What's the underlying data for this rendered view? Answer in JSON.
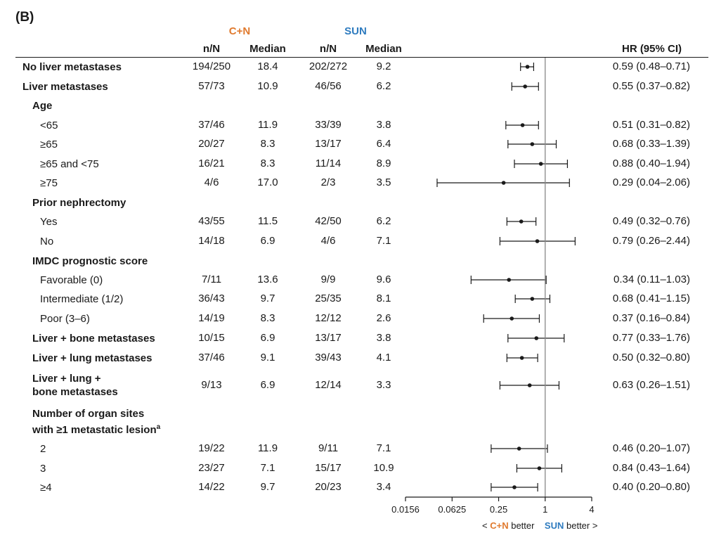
{
  "panel_label": "(B)",
  "groups": {
    "cn": "C+N",
    "sun": "SUN"
  },
  "columns": {
    "n_cn": "n/N",
    "median_cn": "Median",
    "n_sun": "n/N",
    "median_sun": "Median",
    "hr": "HR (95% CI)"
  },
  "colors": {
    "cn": "#e07a2e",
    "sun": "#2e7bbf",
    "reference_line": "#888888",
    "marker": "#1a1a1a"
  },
  "legend": {
    "cn_group": "C+N",
    "cn_text": "better",
    "sun_group": "SUN",
    "sun_text": "better",
    "left_arrow": "<",
    "right_arrow": ">"
  },
  "chart_data": {
    "type": "forest",
    "x_scale": "log2",
    "xlim": [
      0.0156,
      4
    ],
    "x_ticks": [
      0.0156,
      0.0625,
      0.25,
      1,
      4
    ],
    "x_tick_labels": [
      "0.0156",
      "0.0625",
      "0.25",
      "1",
      "4"
    ],
    "reference_x": 1,
    "rows": [
      {
        "label": "No liver metastases",
        "bold": true,
        "indent": 0,
        "n_cn": "194/250",
        "median_cn": "18.4",
        "n_sun": "202/272",
        "median_sun": "9.2",
        "hr": 0.59,
        "lo": 0.48,
        "hi": 0.71,
        "hr_text": "0.59 (0.48–0.71)"
      },
      {
        "label": "Liver metastases",
        "bold": true,
        "indent": 0,
        "n_cn": "57/73",
        "median_cn": "10.9",
        "n_sun": "46/56",
        "median_sun": "6.2",
        "hr": 0.55,
        "lo": 0.37,
        "hi": 0.82,
        "hr_text": "0.55 (0.37–0.82)"
      },
      {
        "label": "Age",
        "bold": true,
        "indent": 1,
        "header": true
      },
      {
        "label": "<65",
        "bold": false,
        "indent": 2,
        "n_cn": "37/46",
        "median_cn": "11.9",
        "n_sun": "33/39",
        "median_sun": "3.8",
        "hr": 0.51,
        "lo": 0.31,
        "hi": 0.82,
        "hr_text": "0.51 (0.31–0.82)"
      },
      {
        "label": "≥65",
        "bold": false,
        "indent": 2,
        "n_cn": "20/27",
        "median_cn": "8.3",
        "n_sun": "13/17",
        "median_sun": "6.4",
        "hr": 0.68,
        "lo": 0.33,
        "hi": 1.39,
        "hr_text": "0.68 (0.33–1.39)"
      },
      {
        "label": "≥65 and <75",
        "bold": false,
        "indent": 2,
        "n_cn": "16/21",
        "median_cn": "8.3",
        "n_sun": "11/14",
        "median_sun": "8.9",
        "hr": 0.88,
        "lo": 0.4,
        "hi": 1.94,
        "hr_text": "0.88 (0.40–1.94)"
      },
      {
        "label": "≥75",
        "bold": false,
        "indent": 2,
        "n_cn": "4/6",
        "median_cn": "17.0",
        "n_sun": "2/3",
        "median_sun": "3.5",
        "hr": 0.29,
        "lo": 0.04,
        "hi": 2.06,
        "hr_text": "0.29 (0.04–2.06)"
      },
      {
        "label": "Prior nephrectomy",
        "bold": true,
        "indent": 1,
        "header": true
      },
      {
        "label": "Yes",
        "bold": false,
        "indent": 2,
        "n_cn": "43/55",
        "median_cn": "11.5",
        "n_sun": "42/50",
        "median_sun": "6.2",
        "hr": 0.49,
        "lo": 0.32,
        "hi": 0.76,
        "hr_text": "0.49 (0.32–0.76)"
      },
      {
        "label": "No",
        "bold": false,
        "indent": 2,
        "n_cn": "14/18",
        "median_cn": "6.9",
        "n_sun": "4/6",
        "median_sun": "7.1",
        "hr": 0.79,
        "lo": 0.26,
        "hi": 2.44,
        "hr_text": "0.79 (0.26–2.44)"
      },
      {
        "label": "IMDC prognostic score",
        "bold": true,
        "indent": 1,
        "header": true
      },
      {
        "label": "Favorable (0)",
        "bold": false,
        "indent": 2,
        "n_cn": "7/11",
        "median_cn": "13.6",
        "n_sun": "9/9",
        "median_sun": "9.6",
        "hr": 0.34,
        "lo": 0.11,
        "hi": 1.03,
        "hr_text": "0.34 (0.11–1.03)"
      },
      {
        "label": "Intermediate (1/2)",
        "bold": false,
        "indent": 2,
        "n_cn": "36/43",
        "median_cn": "9.7",
        "n_sun": "25/35",
        "median_sun": "8.1",
        "hr": 0.68,
        "lo": 0.41,
        "hi": 1.15,
        "hr_text": "0.68 (0.41–1.15)"
      },
      {
        "label": "Poor (3–6)",
        "bold": false,
        "indent": 2,
        "n_cn": "14/19",
        "median_cn": "8.3",
        "n_sun": "12/12",
        "median_sun": "2.6",
        "hr": 0.37,
        "lo": 0.16,
        "hi": 0.84,
        "hr_text": "0.37 (0.16–0.84)"
      },
      {
        "label": "Liver + bone metastases",
        "bold": true,
        "indent": 1,
        "n_cn": "10/15",
        "median_cn": "6.9",
        "n_sun": "13/17",
        "median_sun": "3.8",
        "hr": 0.77,
        "lo": 0.33,
        "hi": 1.76,
        "hr_text": "0.77 (0.33–1.76)"
      },
      {
        "label": "Liver + lung metastases",
        "bold": true,
        "indent": 1,
        "n_cn": "37/46",
        "median_cn": "9.1",
        "n_sun": "39/43",
        "median_sun": "4.1",
        "hr": 0.5,
        "lo": 0.32,
        "hi": 0.8,
        "hr_text": "0.50 (0.32–0.80)"
      },
      {
        "label": "Liver + lung +\nbone metastases",
        "bold": true,
        "indent": 1,
        "n_cn": "9/13",
        "median_cn": "6.9",
        "n_sun": "12/14",
        "median_sun": "3.3",
        "hr": 0.63,
        "lo": 0.26,
        "hi": 1.51,
        "hr_text": "0.63 (0.26–1.51)"
      },
      {
        "label": "Number of organ sites\nwith ≥1 metastatic lesion",
        "superscript": "a",
        "bold": true,
        "indent": 1,
        "header": true
      },
      {
        "label": "2",
        "bold": false,
        "indent": 2,
        "n_cn": "19/22",
        "median_cn": "11.9",
        "n_sun": "9/11",
        "median_sun": "7.1",
        "hr": 0.46,
        "lo": 0.2,
        "hi": 1.07,
        "hr_text": "0.46 (0.20–1.07)"
      },
      {
        "label": "3",
        "bold": false,
        "indent": 2,
        "n_cn": "23/27",
        "median_cn": "7.1",
        "n_sun": "15/17",
        "median_sun": "10.9",
        "hr": 0.84,
        "lo": 0.43,
        "hi": 1.64,
        "hr_text": "0.84 (0.43–1.64)"
      },
      {
        "label": "≥4",
        "bold": false,
        "indent": 2,
        "n_cn": "14/22",
        "median_cn": "9.7",
        "n_sun": "20/23",
        "median_sun": "3.4",
        "hr": 0.4,
        "lo": 0.2,
        "hi": 0.8,
        "hr_text": "0.40 (0.20–0.80)"
      }
    ]
  }
}
